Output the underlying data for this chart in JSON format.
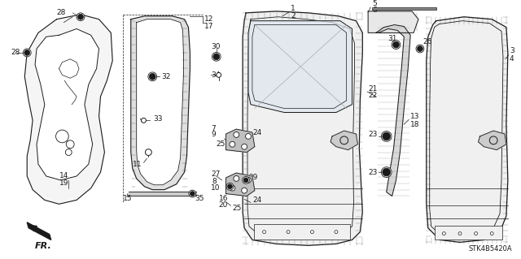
{
  "bg_color": "#ffffff",
  "line_color": "#1a1a1a",
  "hatch_color": "#888888",
  "diagram_code": "STK4B5420A",
  "fig_width": 6.4,
  "fig_height": 3.19,
  "dpi": 100,
  "label_fontsize": 6.5
}
